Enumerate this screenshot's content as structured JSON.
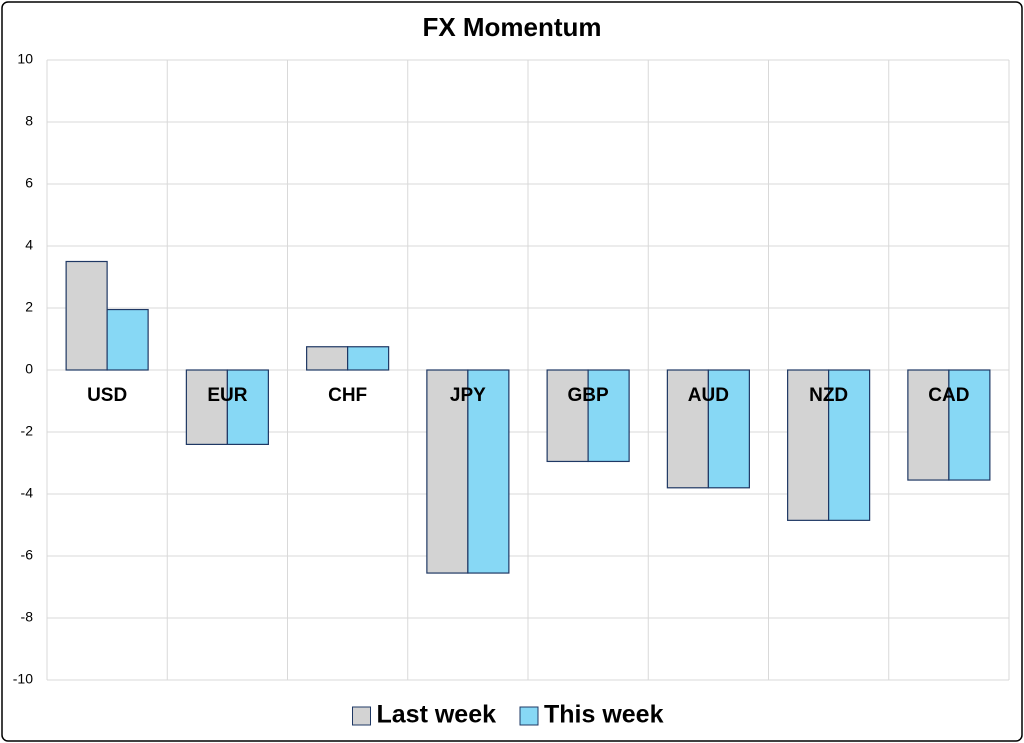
{
  "chart_data": {
    "type": "bar",
    "title": "FX Momentum",
    "categories": [
      "USD",
      "EUR",
      "CHF",
      "JPY",
      "GBP",
      "AUD",
      "NZD",
      "CAD"
    ],
    "series": [
      {
        "name": "Last week",
        "color": "#d3d3d3",
        "values": [
          3.5,
          -2.4,
          0.75,
          -6.55,
          -2.95,
          -3.8,
          -4.85,
          -3.55
        ]
      },
      {
        "name": "This week",
        "color": "#87d8f5",
        "values": [
          1.95,
          -2.4,
          0.75,
          -6.55,
          -2.95,
          -3.8,
          -4.85,
          -3.55
        ]
      }
    ],
    "ylim": [
      -10,
      10
    ],
    "yticks": [
      -10,
      -8,
      -6,
      -4,
      -2,
      0,
      2,
      4,
      6,
      8,
      10
    ],
    "grid": true,
    "legend": "bottom"
  }
}
